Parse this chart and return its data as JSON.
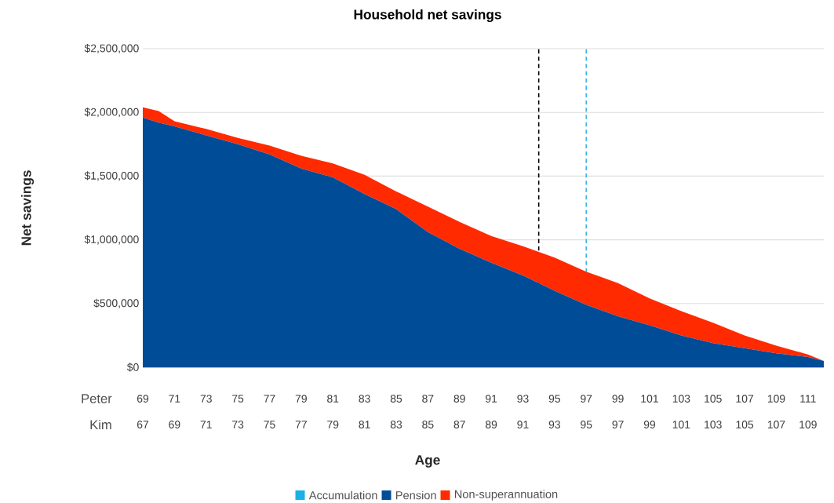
{
  "chart_data": {
    "type": "area",
    "title": "Household net savings",
    "xlabel": "Age",
    "ylabel": "Net savings",
    "annotations": [
      "Peter",
      "Kim"
    ],
    "stacked": true,
    "x": [
      69,
      70,
      71,
      73,
      75,
      77,
      79,
      81,
      83,
      85,
      87,
      89,
      91,
      93,
      95,
      97,
      99,
      101,
      103,
      105,
      107,
      109,
      111,
      112
    ],
    "series": [
      {
        "name": "Accumulation",
        "color": "#1ab0e8",
        "values": [
          null,
          null,
          null,
          null,
          null,
          null,
          null,
          null,
          null,
          null,
          null,
          null,
          null,
          null,
          null,
          null,
          null,
          null,
          null,
          null,
          null,
          null,
          null,
          null
        ]
      },
      {
        "name": "Pension",
        "color": "#004c97",
        "values": [
          1960000,
          1920000,
          1890000,
          1820000,
          1750000,
          1670000,
          1560000,
          1490000,
          1360000,
          1240000,
          1060000,
          930000,
          820000,
          720000,
          600000,
          490000,
          400000,
          330000,
          250000,
          190000,
          150000,
          110000,
          80000,
          50000
        ]
      },
      {
        "name": "Non-superannuation",
        "color": "#ff2a00",
        "values": [
          80000,
          90000,
          40000,
          50000,
          50000,
          70000,
          100000,
          110000,
          150000,
          140000,
          200000,
          210000,
          210000,
          230000,
          260000,
          260000,
          260000,
          210000,
          190000,
          160000,
          100000,
          60000,
          20000,
          0
        ]
      }
    ],
    "xlim": [
      69,
      112
    ],
    "xticks": [
      69,
      71,
      73,
      75,
      77,
      79,
      81,
      83,
      85,
      87,
      89,
      91,
      93,
      95,
      97,
      99,
      101,
      103,
      105,
      107,
      109,
      111
    ],
    "x2lim": [
      67,
      110
    ],
    "x2ticks": [
      67,
      69,
      71,
      73,
      75,
      77,
      79,
      81,
      83,
      85,
      87,
      89,
      91,
      93,
      95,
      97,
      99,
      101,
      103,
      105,
      107,
      109
    ],
    "ylim": [
      0,
      2500000
    ],
    "yticks": [
      {
        "value": 0,
        "label": "$0"
      },
      {
        "value": 500000,
        "label": "$500,000"
      },
      {
        "value": 1000000,
        "label": "$1,000,000"
      },
      {
        "value": 1500000,
        "label": "$1,500,000"
      },
      {
        "value": 2000000,
        "label": "$2,000,000"
      },
      {
        "value": 2500000,
        "label": "$2,500,000"
      }
    ],
    "ref_lines": [
      {
        "axis": "x",
        "value": 94,
        "color": "#000000",
        "line_style": "dashed"
      },
      {
        "axis": "x",
        "value": 97,
        "color": "#3cb4e5",
        "line_style": "dashed"
      }
    ],
    "grid": "y",
    "legend": "bottom"
  }
}
